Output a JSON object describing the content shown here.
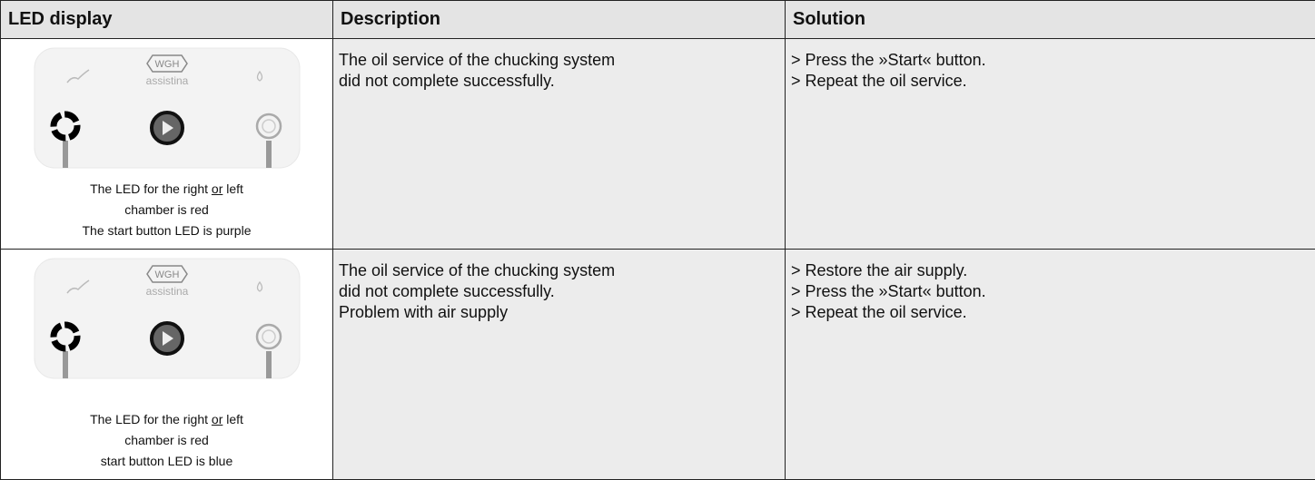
{
  "table": {
    "header": [
      "LED display",
      "Description",
      "Solution"
    ],
    "rows": [
      {
        "led": {
          "logo": "WGH",
          "brand": "assistina",
          "caption": [
            [
              "The LED for the right ",
              "or",
              " left"
            ],
            "chamber is red",
            "The start button LED is purple"
          ]
        },
        "description": [
          "The oil service of the chucking system",
          "did not complete successfully."
        ],
        "solution": [
          "> Press the »Start« button.",
          "> Repeat the oil service."
        ]
      },
      {
        "led": {
          "logo": "WGH",
          "brand": "assistina",
          "caption": [
            [
              "The LED for the right ",
              "or",
              " left"
            ],
            "chamber is red",
            "start button LED is blue"
          ]
        },
        "description": [
          "The oil service of the chucking system",
          "did not complete successfully.",
          "Problem with air supply"
        ],
        "solution": [
          "> Restore the air supply.",
          "> Press the »Start« button.",
          "> Repeat the oil service."
        ]
      }
    ]
  }
}
